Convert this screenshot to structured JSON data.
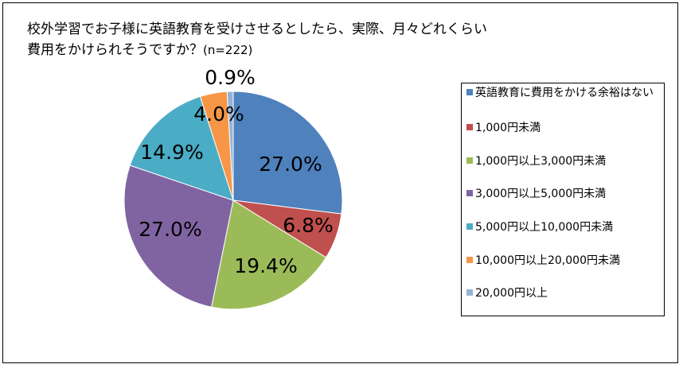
{
  "chart_data": {
    "type": "pie",
    "title_line1": "校外学習でお子様に英語教育を受けさせるとしたら、実際、月々どれくらい",
    "title_line2": "費用をかけられそうですか？",
    "title_n": "(n=222)",
    "categories": [
      "英語教育に費用をかける余裕はない",
      "1,000円未満",
      "1,000円以上3,000円未満",
      "3,000円以上5,000円未満",
      "5,000円以上10,000円未満",
      "10,000円以上20,000円未満",
      "20,000円以上"
    ],
    "values": [
      27.0,
      6.8,
      19.4,
      27.0,
      14.9,
      4.0,
      0.9
    ],
    "labels": [
      "27.0%",
      "6.8%",
      "19.4%",
      "27.0%",
      "14.9%",
      "4.0%",
      "0.9%"
    ],
    "colors": [
      "#4F81BD",
      "#C0504D",
      "#9BBB59",
      "#8064A2",
      "#4BACC6",
      "#F79646",
      "#95B3D7"
    ],
    "legend_position": "right",
    "unit": "%"
  }
}
